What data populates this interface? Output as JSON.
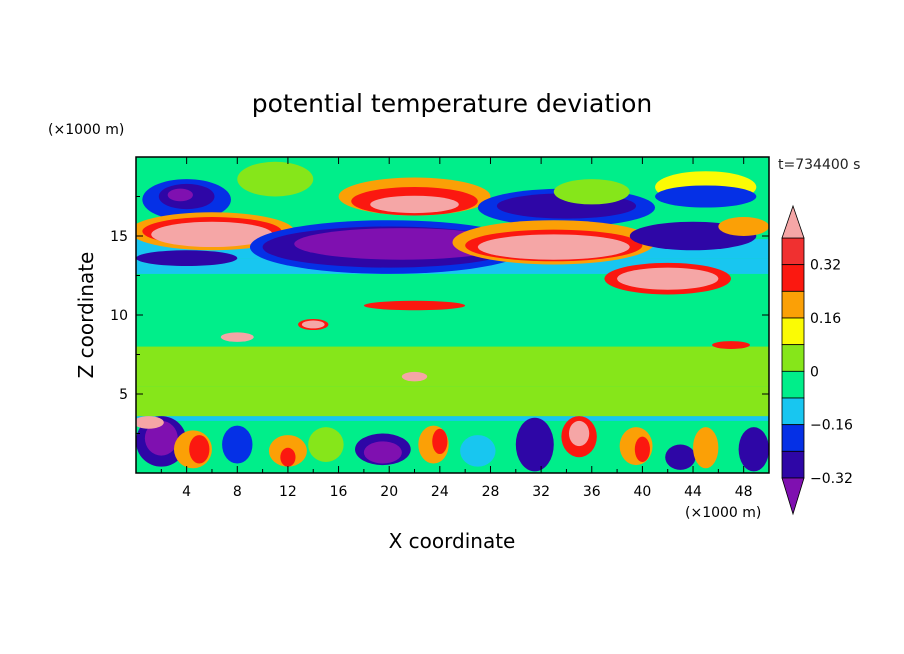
{
  "chart_data": {
    "type": "heatmap",
    "title": "potential temperature deviation",
    "xlabel": "X coordinate",
    "ylabel": "Z coordinate",
    "x_unit": "(×1000 m)",
    "y_unit": "(×1000 m)",
    "time_label": "t=734400 s",
    "xlim": [
      0,
      50
    ],
    "ylim": [
      0,
      20
    ],
    "x_ticks": [
      4,
      8,
      12,
      16,
      20,
      24,
      28,
      32,
      36,
      40,
      44,
      48
    ],
    "y_ticks": [
      5,
      10,
      15
    ],
    "colorbar": {
      "labels": [
        "0.32",
        "0.16",
        "0",
        "−0.16",
        "−0.32"
      ],
      "label_values": [
        0.32,
        0.16,
        0,
        -0.16,
        -0.32
      ],
      "level_colors": [
        "#7f10b0",
        "#2e06a6",
        "#0530e6",
        "#18c6f0",
        "#00ee8a",
        "#86e61a",
        "#fbfb04",
        "#fba006",
        "#fb1810",
        "#f03030",
        "#f5a6a6"
      ],
      "level_bounds": [
        -0.4,
        -0.32,
        -0.24,
        -0.16,
        -0.08,
        0,
        0.08,
        0.16,
        0.24,
        0.32,
        0.4
      ]
    }
  }
}
